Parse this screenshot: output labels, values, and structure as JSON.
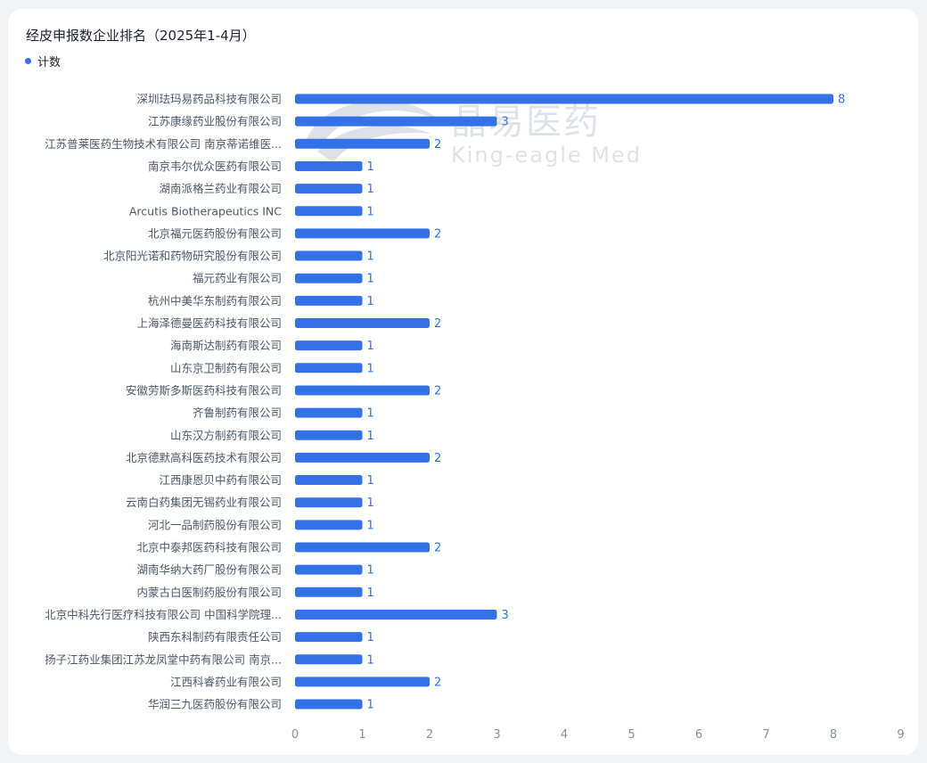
{
  "chart_data": {
    "type": "bar",
    "orientation": "horizontal",
    "title": "经皮申报数企业排名（2025年1-4月）",
    "legend_position": "top-left",
    "colors": {
      "bar": "#3371e8",
      "label": "#3371e8",
      "tick": "#86909c",
      "category": "#4e5969"
    },
    "series": [
      {
        "name": "计数",
        "values": [
          8,
          3,
          2,
          1,
          1,
          1,
          2,
          1,
          1,
          1,
          2,
          1,
          1,
          2,
          1,
          1,
          2,
          1,
          1,
          1,
          2,
          1,
          1,
          3,
          1,
          1,
          2,
          1
        ]
      }
    ],
    "categories": [
      "深圳珐玛易药品科技有限公司",
      "江苏康缘药业股份有限公司",
      "江苏普莱医药生物技术有限公司 南京蒂诺维医...",
      "南京韦尔优众医药有限公司",
      "湖南派格兰药业有限公司",
      "Arcutis Biotherapeutics INC",
      "北京福元医药股份有限公司",
      "北京阳光诺和药物研究股份有限公司",
      "福元药业有限公司",
      "杭州中美华东制药有限公司",
      "上海泽德曼医药科技有限公司",
      "海南斯达制药有限公司",
      "山东京卫制药有限公司",
      "安徽劳斯多斯医药科技有限公司",
      "齐鲁制药有限公司",
      "山东汉方制药有限公司",
      "北京德默高科医药技术有限公司",
      "江西康恩贝中药有限公司",
      "云南白药集团无锡药业有限公司",
      "河北一品制药股份有限公司",
      "北京中泰邦医药科技有限公司",
      "湖南华纳大药厂股份有限公司",
      "内蒙古白医制药股份有限公司",
      "北京中科先行医疗科技有限公司 中国科学院理...",
      "陕西东科制药有限责任公司",
      "扬子江药业集团江苏龙凤堂中药有限公司 南京...",
      "江西科睿药业有限公司",
      "华润三九医药股份有限公司"
    ],
    "xlim": [
      0,
      9
    ],
    "xticks": [
      "0",
      "1",
      "2",
      "3",
      "4",
      "5",
      "6",
      "7",
      "8",
      "9"
    ],
    "grid": false
  },
  "watermark": {
    "cn": "晶易医药",
    "en": "King-eagle Med"
  }
}
